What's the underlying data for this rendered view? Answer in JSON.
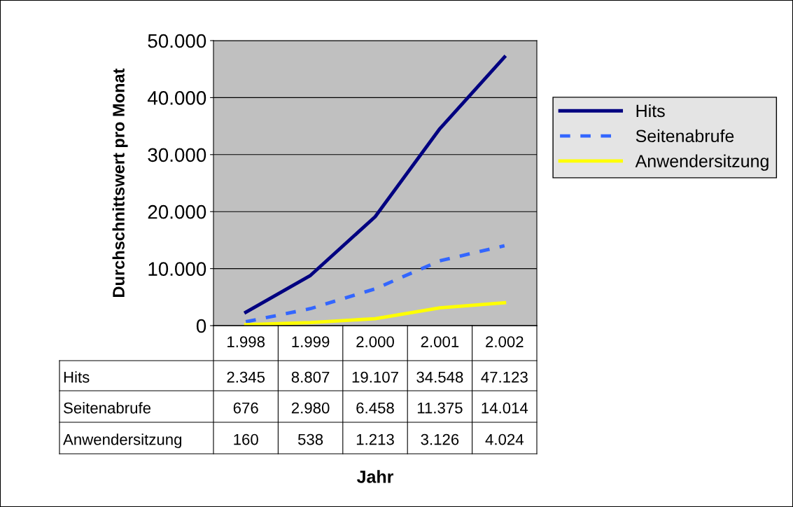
{
  "chart_data": {
    "type": "line",
    "annotations": [
      "Jahr"
    ],
    "ylabel": "Durchschnittswert pro Monat",
    "categories": [
      "1.998",
      "1.999",
      "2.000",
      "2.001",
      "2.002"
    ],
    "series": [
      {
        "name": "Hits",
        "color": "#000080",
        "line_style": "solid",
        "values": [
          2345,
          8807,
          19107,
          34548,
          47123
        ],
        "value_labels": [
          "2.345",
          "8.807",
          "19.107",
          "34.548",
          "47.123"
        ]
      },
      {
        "name": "Seitenabrufe",
        "color": "#3366ff",
        "line_style": "dashed",
        "values": [
          676,
          2980,
          6458,
          11375,
          14014
        ],
        "value_labels": [
          "676",
          "2.980",
          "6.458",
          "11.375",
          "14.014"
        ]
      },
      {
        "name": "Anwendersitzung",
        "color": "#ffff00",
        "line_style": "solid",
        "values": [
          160,
          538,
          1213,
          3126,
          4024
        ],
        "value_labels": [
          "160",
          "538",
          "1.213",
          "3.126",
          "4.024"
        ]
      }
    ],
    "ylim": [
      0,
      50000
    ],
    "yticks": [
      {
        "value": 0,
        "label": "0"
      },
      {
        "value": 10000,
        "label": "10.000"
      },
      {
        "value": 20000,
        "label": "20.000"
      },
      {
        "value": 30000,
        "label": "30.000"
      },
      {
        "value": 40000,
        "label": "40.000"
      },
      {
        "value": 50000,
        "label": "50.000"
      }
    ],
    "grid": "y",
    "legend": "right",
    "tick_labels": "y",
    "marker": "none"
  }
}
